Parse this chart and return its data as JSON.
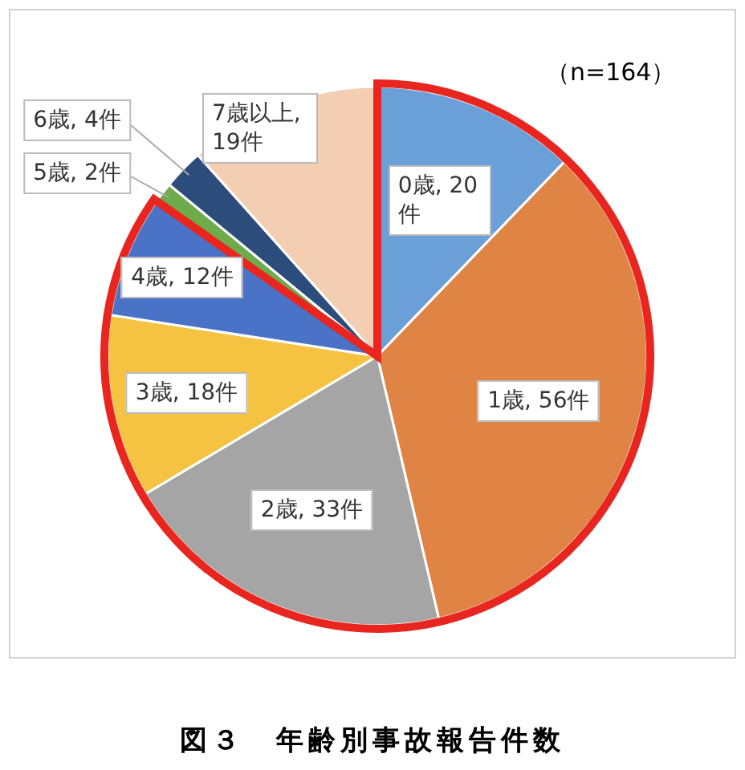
{
  "chart_data": {
    "type": "pie",
    "title": "図３　年齢別事故報告件数",
    "annotations": [
      "（n=164）"
    ],
    "categories": [
      "0歳",
      "1歳",
      "2歳",
      "3歳",
      "4歳",
      "5歳",
      "6歳",
      "7歳以上"
    ],
    "values": [
      20,
      56,
      33,
      18,
      12,
      2,
      4,
      19
    ],
    "value_labels": [
      ", 20件",
      ", 56件",
      ", 33件",
      ", 18件",
      ", 12件",
      ", 2件",
      ", 4件",
      ", 19件"
    ],
    "colors": [
      "#6a9fd8",
      "#df8444",
      "#a5a5a5",
      "#f5c242",
      "#4a72c6",
      "#6eab4a",
      "#2c4d7c",
      "#f3ceb2"
    ]
  }
}
